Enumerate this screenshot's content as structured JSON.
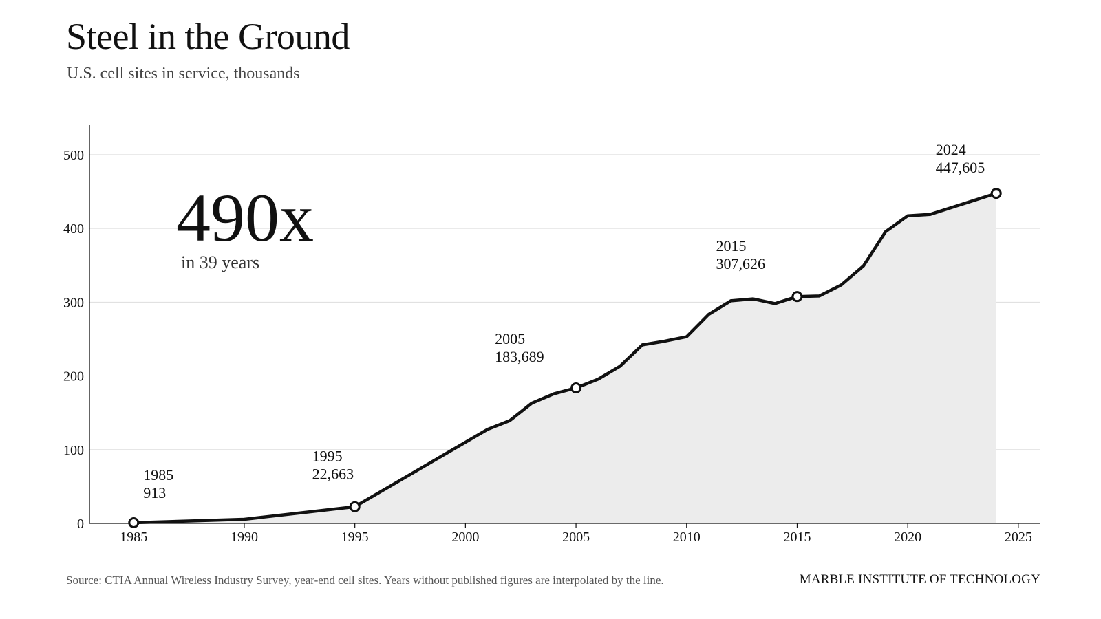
{
  "header": {
    "title": "Steel in the Ground",
    "subtitle": "U.S. cell sites in service, thousands"
  },
  "callout": {
    "value": "490x",
    "caption": "in 39 years"
  },
  "footer": {
    "source": "Source: CTIA Annual Wireless Industry Survey, year-end cell sites. Years without published figures are interpolated by the line.",
    "brand": "MARBLE INSTITUTE OF TECHNOLOGY"
  },
  "chart_data": {
    "type": "area",
    "title": "Steel in the Ground",
    "subtitle": "U.S. cell sites in service, thousands",
    "xlabel": "",
    "ylabel": "",
    "xlim": [
      1983,
      2026
    ],
    "ylim": [
      0,
      540
    ],
    "x_ticks": [
      1985,
      1990,
      1995,
      2000,
      2005,
      2010,
      2015,
      2020,
      2025
    ],
    "y_ticks": [
      0,
      100,
      200,
      300,
      400,
      500
    ],
    "grid": "horizontal",
    "legend": "none",
    "colors": {
      "line": "#111111",
      "fill": "#ececec",
      "grid": "#dddddd",
      "marker_fill": "#ffffff"
    },
    "series": [
      {
        "x": [
          1985,
          1990,
          1995,
          2001,
          2002,
          2003,
          2004,
          2005,
          2006,
          2007,
          2008,
          2009,
          2010,
          2011,
          2012,
          2013,
          2014,
          2015,
          2016,
          2017,
          2018,
          2019,
          2020,
          2021,
          2024
        ],
        "y": [
          0.913,
          5.6,
          22.663,
          127.5,
          139.3,
          163,
          175.7,
          183.689,
          195.6,
          213.3,
          242.1,
          247.1,
          253.1,
          283.4,
          301.8,
          304.4,
          298.1,
          307.626,
          308.3,
          323.4,
          349.3,
          395.6,
          417.2,
          418.9,
          447.605
        ]
      }
    ],
    "annotations": [
      {
        "x": 1985,
        "y": 0.913,
        "year": "1985",
        "value": "913"
      },
      {
        "x": 1995,
        "y": 22.663,
        "year": "1995",
        "value": "22,663"
      },
      {
        "x": 2005,
        "y": 183.689,
        "year": "2005",
        "value": "183,689"
      },
      {
        "x": 2015,
        "y": 307.626,
        "year": "2015",
        "value": "307,626"
      },
      {
        "x": 2024,
        "y": 447.605,
        "year": "2024",
        "value": "447,605"
      }
    ]
  }
}
